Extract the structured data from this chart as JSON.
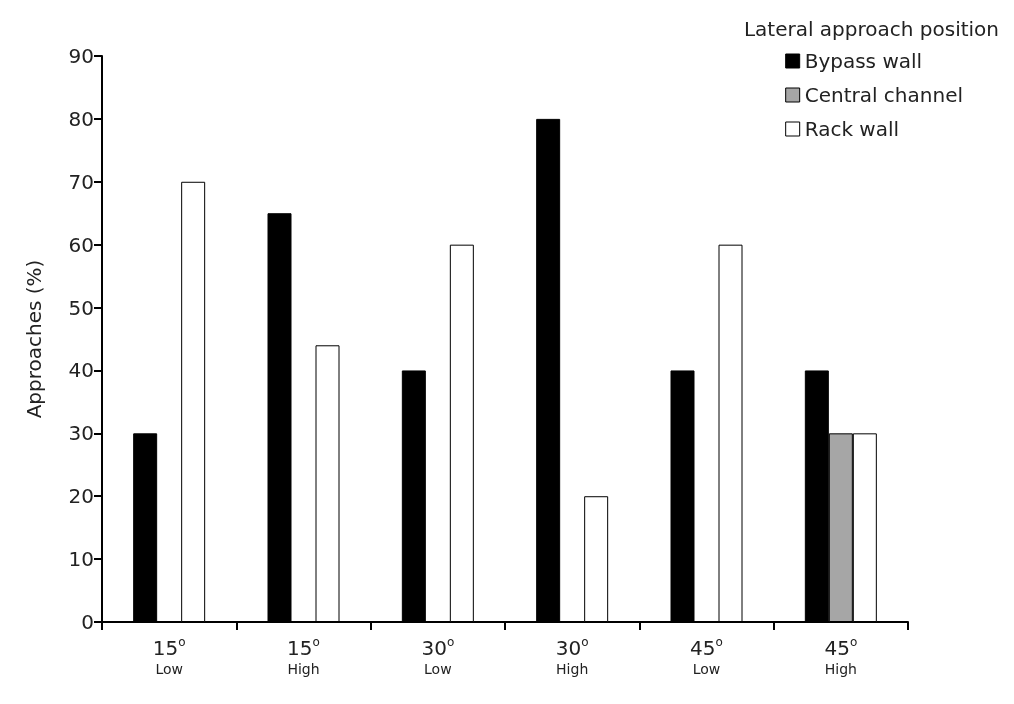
{
  "chart_data": {
    "type": "bar",
    "ylabel": "Approaches (%)",
    "legend_title": "Lateral approach position",
    "categories": [
      "15$^{o}$\nLow",
      "15$^{o}$\nHigh",
      "30$^{o}$\nLow",
      "30$^{o}$\nHigh",
      "45$^{o}$\nLow",
      "45$^{o}$\nHigh"
    ],
    "series": [
      {
        "name": "Bypass wall",
        "color": "#000000",
        "values": [
          30,
          65,
          40,
          80,
          40,
          40
        ]
      },
      {
        "name": "Central channel",
        "color": "#a6a6a6",
        "values": [
          0,
          0,
          0,
          0,
          0,
          30
        ]
      },
      {
        "name": "Rack wall",
        "color": "#ffffff",
        "values": [
          70,
          44,
          60,
          20,
          60,
          30
        ]
      }
    ],
    "ylim": [
      0,
      90
    ],
    "yticks": [
      0,
      10,
      20,
      30,
      40,
      50,
      60,
      70,
      80,
      90
    ],
    "grid": false,
    "legend": "top right"
  }
}
